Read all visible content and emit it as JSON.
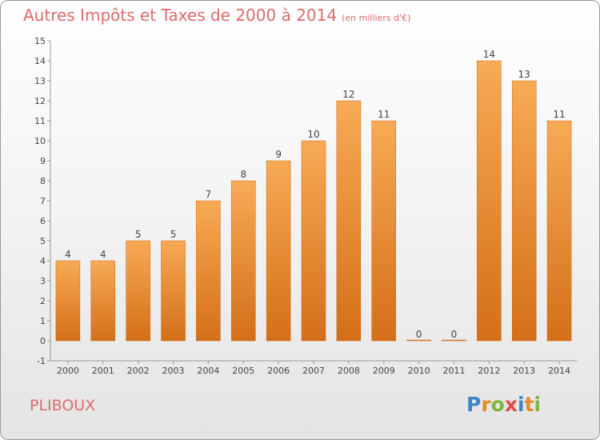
{
  "header": {
    "title": "Autres Impôts et Taxes de 2000 à 2014",
    "subtitle": "(en milliers d'€)"
  },
  "location": "PLIBOUX",
  "brand": {
    "letters": [
      "P",
      "r",
      "o",
      "x",
      "i",
      "t",
      "i"
    ],
    "colors": [
      "#3a86c8",
      "#e28b2a",
      "#7bb63a",
      "#e04a4a",
      "#3a86c8",
      "#e28b2a",
      "#7bb63a"
    ]
  },
  "chart_data": {
    "type": "bar",
    "categories": [
      "2000",
      "2001",
      "2002",
      "2003",
      "2004",
      "2005",
      "2006",
      "2007",
      "2008",
      "2009",
      "2010",
      "2011",
      "2012",
      "2013",
      "2014"
    ],
    "values": [
      4,
      4,
      5,
      5,
      7,
      8,
      9,
      10,
      12,
      11,
      0,
      0,
      14,
      13,
      11
    ],
    "y_ticks": [
      "-1",
      "0",
      "1",
      "2",
      "3",
      "4",
      "5",
      "6",
      "7",
      "8",
      "9",
      "10",
      "11",
      "12",
      "13",
      "14",
      "15"
    ],
    "ylim": [
      -1,
      15
    ],
    "grid": false,
    "colors": {
      "bar_top": "#f8aa55",
      "bar_bottom": "#d46f18",
      "text": "#444444",
      "axis": "#999999"
    }
  }
}
